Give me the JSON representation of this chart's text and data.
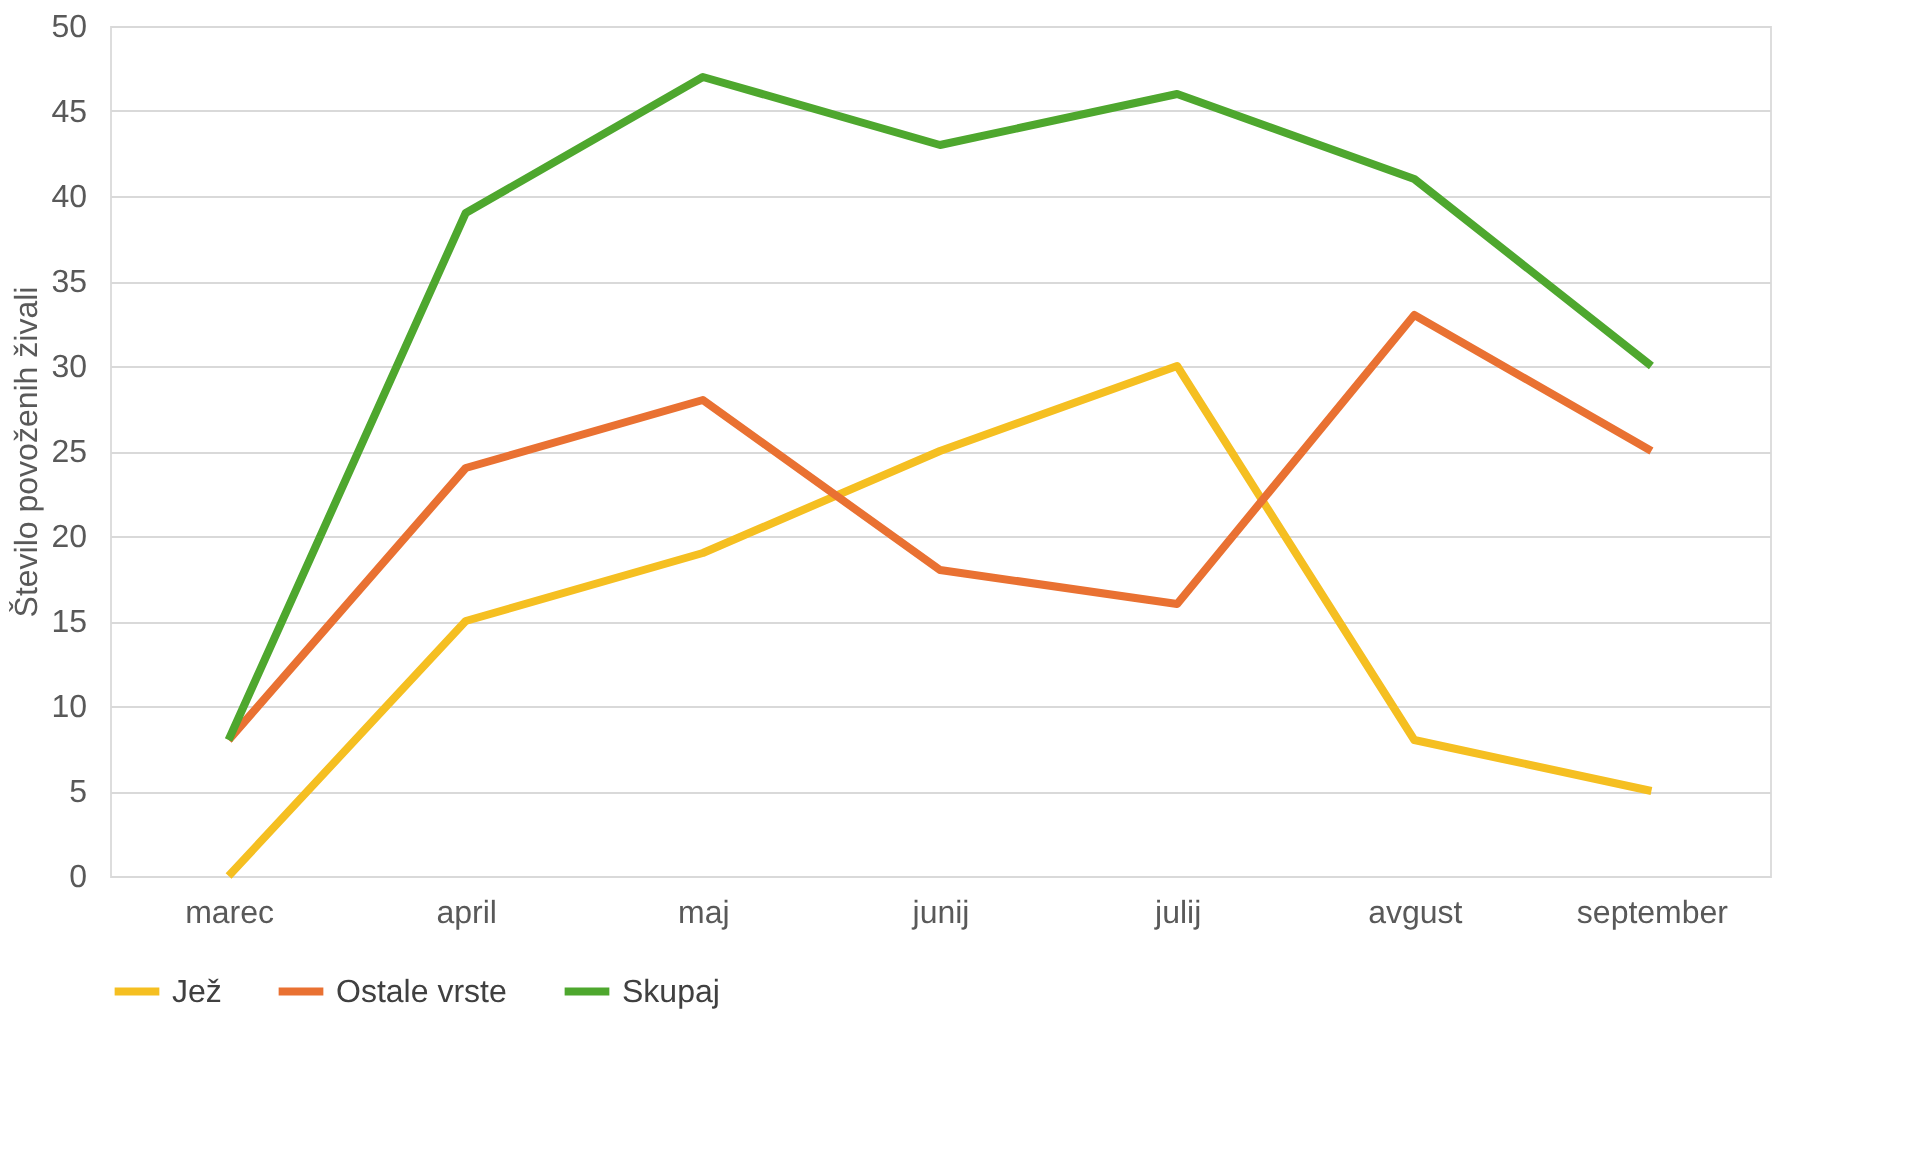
{
  "chart_data": {
    "type": "line",
    "ylabel": "Število povoženih živali",
    "categories": [
      "marec",
      "april",
      "maj",
      "junij",
      "julij",
      "avgust",
      "september"
    ],
    "series": [
      {
        "name": "Jež",
        "color": "#f5bf21",
        "values": [
          0,
          15,
          19,
          25,
          30,
          8,
          5
        ]
      },
      {
        "name": "Ostale vrste",
        "color": "#e97132",
        "values": [
          8,
          24,
          28,
          18,
          16,
          33,
          25
        ]
      },
      {
        "name": "Skupaj",
        "color": "#4ea72e",
        "values": [
          8,
          39,
          47,
          43,
          46,
          41,
          30
        ]
      }
    ],
    "ylim": [
      0,
      50
    ],
    "yticks": [
      0,
      5,
      10,
      15,
      20,
      25,
      30,
      35,
      40,
      45,
      50
    ],
    "grid": "y",
    "legend": "bottom",
    "marker": "none",
    "line_style": "solid"
  }
}
